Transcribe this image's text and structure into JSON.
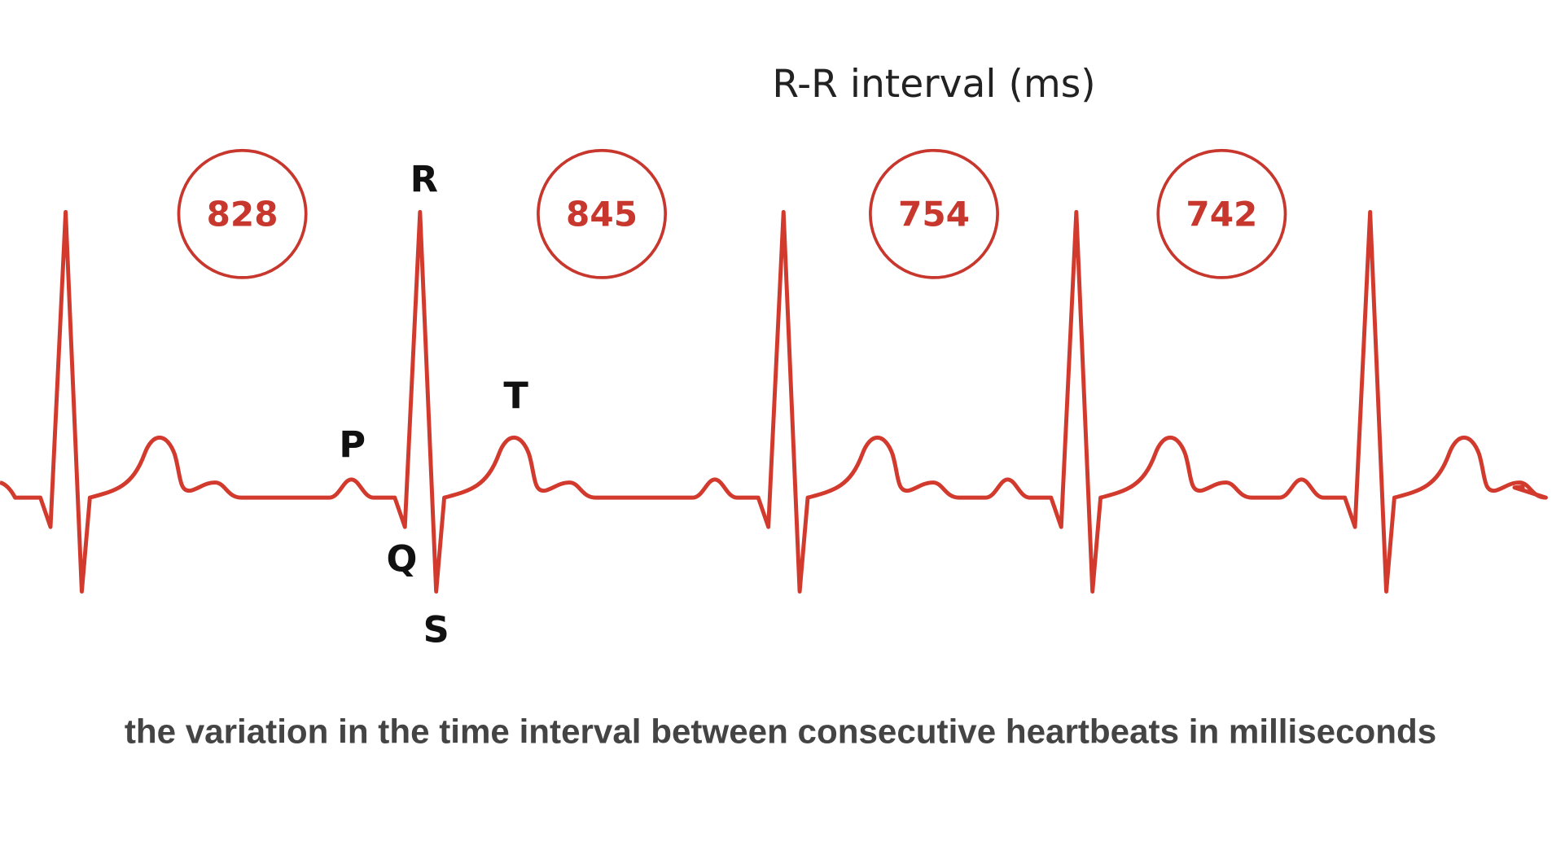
{
  "title": "R-R interval (ms)",
  "caption": "the variation in the time interval between consecutive heartbeats in milliseconds",
  "wave_labels": {
    "P": "P",
    "Q": "Q",
    "R": "R",
    "S": "S",
    "T": "T"
  },
  "colors": {
    "trace": "#d23a2e",
    "circle": "#c8372d"
  },
  "chart_data": {
    "type": "line",
    "title": "R-R interval (ms)",
    "rr_intervals_ms": [
      "828",
      "845",
      "754",
      "742"
    ],
    "beats": 5,
    "annotations": [
      "P",
      "Q",
      "R",
      "S",
      "T"
    ]
  }
}
